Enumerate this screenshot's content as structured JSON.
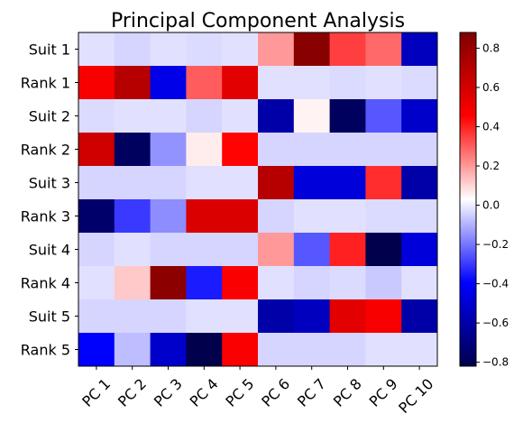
{
  "chart_data": {
    "type": "heatmap",
    "title": "Principal Component Analysis",
    "rows": [
      "Suit 1",
      "Rank 1",
      "Suit 2",
      "Rank 2",
      "Suit 3",
      "Rank 3",
      "Suit 4",
      "Rank 4",
      "Suit 5",
      "Rank 5"
    ],
    "columns": [
      "PC 1",
      "PC 2",
      "PC 3",
      "PC 4",
      "PC 5",
      "PC 6",
      "PC 7",
      "PC 8",
      "PC 9",
      "PC 10"
    ],
    "values": [
      [
        -0.02,
        -0.04,
        -0.02,
        -0.03,
        -0.02,
        0.2,
        0.85,
        0.35,
        0.28,
        -0.55
      ],
      [
        0.48,
        0.7,
        -0.45,
        0.3,
        0.55,
        -0.02,
        -0.02,
        -0.03,
        -0.02,
        -0.03
      ],
      [
        -0.03,
        -0.02,
        -0.02,
        -0.04,
        -0.02,
        -0.6,
        0.05,
        -0.78,
        -0.25,
        -0.52
      ],
      [
        0.62,
        -0.78,
        -0.15,
        0.06,
        0.45,
        -0.04,
        -0.04,
        -0.04,
        -0.04,
        -0.04
      ],
      [
        -0.04,
        -0.04,
        -0.04,
        -0.02,
        -0.02,
        0.7,
        -0.48,
        -0.48,
        0.38,
        -0.6
      ],
      [
        -0.75,
        -0.3,
        -0.16,
        0.58,
        0.58,
        -0.04,
        -0.02,
        -0.02,
        -0.03,
        -0.03
      ],
      [
        -0.04,
        -0.02,
        -0.04,
        -0.04,
        -0.04,
        0.2,
        -0.25,
        0.4,
        -0.82,
        -0.48
      ],
      [
        -0.02,
        0.12,
        0.84,
        -0.35,
        0.47,
        -0.02,
        -0.04,
        -0.03,
        -0.06,
        -0.02
      ],
      [
        -0.04,
        -0.04,
        -0.04,
        -0.02,
        -0.02,
        -0.6,
        -0.55,
        0.55,
        0.48,
        -0.6
      ],
      [
        -0.4,
        -0.08,
        -0.52,
        -0.82,
        0.47,
        -0.04,
        -0.04,
        -0.04,
        -0.02,
        -0.02
      ]
    ],
    "colormap": "seismic",
    "vmin": -0.82,
    "vmax": 0.88,
    "colorbar_ticks": [
      0.8,
      0.6,
      0.4,
      0.2,
      0.0,
      -0.2,
      -0.4,
      -0.6,
      -0.8
    ],
    "colorbar_tick_labels": [
      "0.8",
      "0.6",
      "0.4",
      "0.2",
      "0.0",
      "−0.2",
      "−0.4",
      "−0.6",
      "−0.8"
    ],
    "grid": false
  }
}
